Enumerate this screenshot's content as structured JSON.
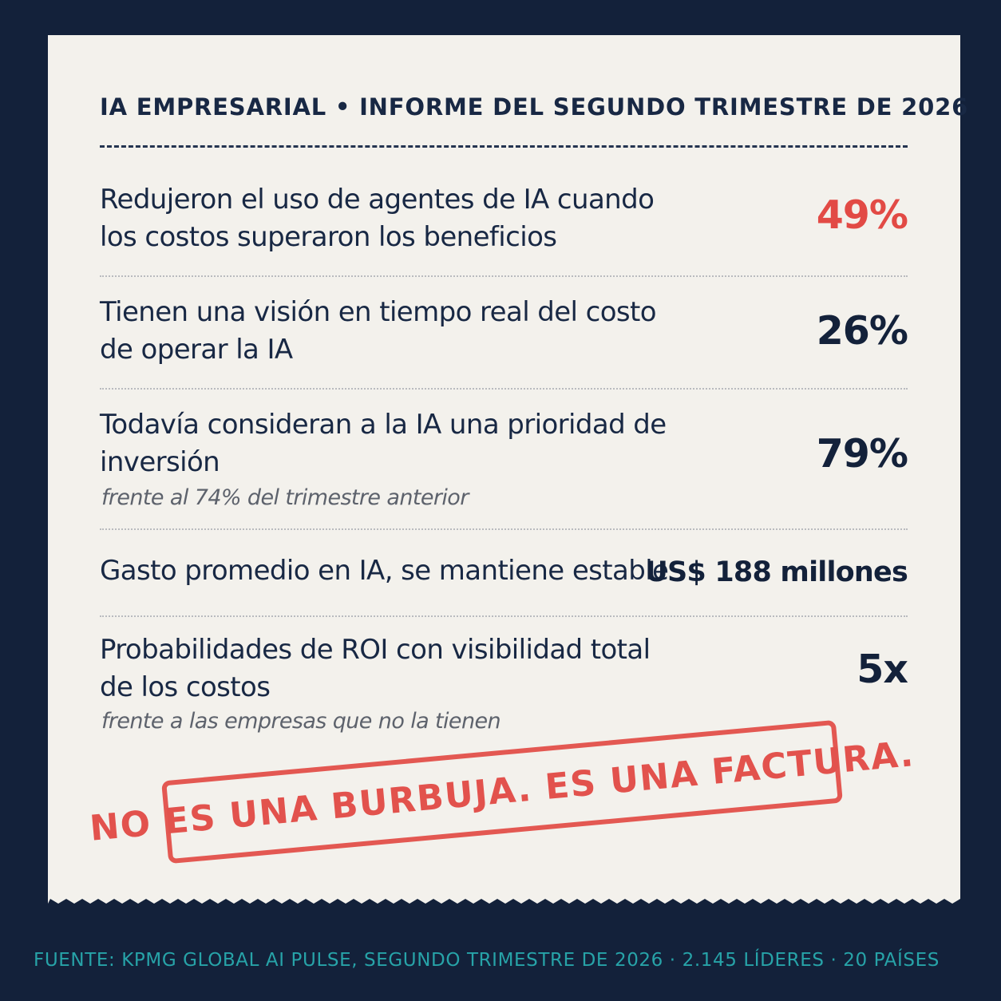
{
  "receipt": {
    "header": "IA EMPRESARIAL • INFORME DEL SEGUNDO TRIMESTRE DE 2026",
    "rows": [
      {
        "label": "Redujeron el uso de agentes de IA cuando los costos superaron los beneficios",
        "value": "49%",
        "note": ""
      },
      {
        "label": "Tienen una visión en tiempo real del costo de operar la IA",
        "value": "26%",
        "note": ""
      },
      {
        "label": "Todavía consideran a la IA una prioridad de inversión",
        "value": "79%",
        "note": "frente al 74% del trimestre anterior"
      },
      {
        "label": "Gasto promedio en IA, se mantiene estable",
        "value": "US$ 188 millones",
        "note": ""
      },
      {
        "label": "Probabilidades de ROI con visibilidad total de los costos",
        "value": "5x",
        "note": "frente a las empresas que no la tienen"
      }
    ],
    "stamp": "NO ES UNA BURBUJA. ES UNA FACTURA."
  },
  "source": "FUENTE: KPMG GLOBAL AI PULSE, SEGUNDO TRIMESTRE DE 2026 · 2.145 LÍDERES · 20 PAÍSES",
  "colors": {
    "background": "#13213a",
    "paper": "#f3f1ec",
    "text": "#182844",
    "accent_red": "#e24a45",
    "source_teal": "#27a3a8"
  }
}
